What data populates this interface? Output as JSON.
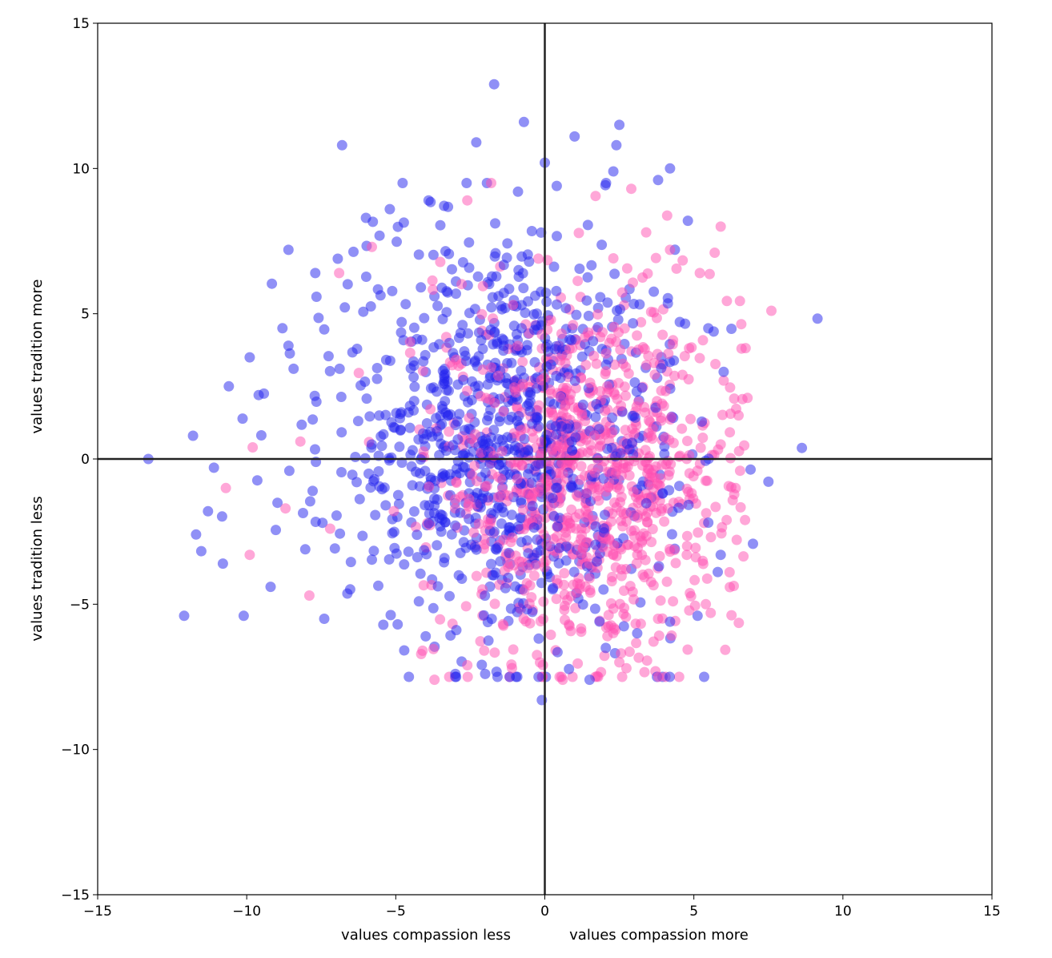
{
  "chart_data": {
    "type": "scatter",
    "title": "",
    "xlim": [
      -15,
      15
    ],
    "ylim": [
      -15,
      15
    ],
    "x_ticks": [
      -15,
      -10,
      -5,
      0,
      5,
      10,
      15
    ],
    "y_ticks": [
      -15,
      -10,
      -5,
      0,
      5,
      10,
      15
    ],
    "x_tick_labels": [
      "−15",
      "−10",
      "−5",
      "0",
      "5",
      "10",
      "15"
    ],
    "y_tick_labels": [
      "−15",
      "−10",
      "−5",
      "0",
      "5",
      "10",
      "15"
    ],
    "x_labels": {
      "left": "values compassion less",
      "right": "values compassion more"
    },
    "y_labels": {
      "bottom": "values tradition less",
      "top": "values tradition more"
    },
    "grid": false,
    "legend": "none",
    "reference_lines": [
      {
        "orientation": "vertical",
        "value": 0
      },
      {
        "orientation": "horizontal",
        "value": 0
      }
    ],
    "point_alpha": 0.5,
    "series": [
      {
        "color": "#ff4fb2",
        "center": [
          1.3,
          -0.6
        ],
        "spread": [
          2.4,
          3.0
        ],
        "points": [
          [
            7.6,
            5.1
          ],
          [
            6.6,
            3.8
          ],
          [
            6.8,
            2.1
          ],
          [
            5.9,
            8.0
          ],
          [
            5.7,
            7.1
          ],
          [
            6.4,
            -1.0
          ],
          [
            6.2,
            -3.9
          ],
          [
            -3.7,
            -7.6
          ],
          [
            0.6,
            -7.6
          ],
          [
            2.5,
            -7.0
          ],
          [
            -10.7,
            -1.0
          ],
          [
            -9.9,
            -3.3
          ],
          [
            -7.9,
            -4.7
          ],
          [
            -8.7,
            -1.7
          ],
          [
            -2.6,
            8.9
          ],
          [
            2.9,
            9.3
          ],
          [
            -1.8,
            9.5
          ],
          [
            -5.8,
            7.3
          ],
          [
            -6.9,
            6.4
          ],
          [
            -8.2,
            0.6
          ],
          [
            -9.8,
            0.4
          ],
          [
            -7.2,
            -2.4
          ],
          [
            4.2,
            7.2
          ],
          [
            5.2,
            6.4
          ],
          [
            3.4,
            7.8
          ],
          [
            6.0,
            2.7
          ],
          [
            6.5,
            1.5
          ],
          [
            5.9,
            0.5
          ],
          [
            6.1,
            -2.1
          ],
          [
            5.4,
            -5.0
          ],
          [
            -1.1,
            -7.2
          ],
          [
            -2.6,
            -7.1
          ],
          [
            -4.1,
            -6.6
          ],
          [
            2.1,
            -6.1
          ],
          [
            3.8,
            -5.5
          ],
          [
            4.3,
            -4.9
          ]
        ]
      },
      {
        "color": "#2222ee",
        "center": [
          -1.4,
          0.6
        ],
        "spread": [
          3.0,
          3.4
        ],
        "points": [
          [
            -1.7,
            12.9
          ],
          [
            -0.7,
            11.6
          ],
          [
            1.0,
            11.1
          ],
          [
            2.5,
            11.5
          ],
          [
            2.4,
            10.8
          ],
          [
            -2.3,
            10.9
          ],
          [
            -6.8,
            10.8
          ],
          [
            0.0,
            10.2
          ],
          [
            4.2,
            10.0
          ],
          [
            2.3,
            9.9
          ],
          [
            3.8,
            9.6
          ],
          [
            -8.6,
            7.2
          ],
          [
            -7.7,
            6.4
          ],
          [
            -13.3,
            0.0
          ],
          [
            -11.8,
            0.8
          ],
          [
            -11.1,
            -0.3
          ],
          [
            -12.1,
            -5.4
          ],
          [
            -11.7,
            -2.6
          ],
          [
            -11.3,
            -1.8
          ],
          [
            -10.1,
            -5.4
          ],
          [
            -10.8,
            -3.6
          ],
          [
            -9.9,
            3.5
          ],
          [
            -9.6,
            2.2
          ],
          [
            -8.8,
            4.5
          ],
          [
            -8.6,
            3.9
          ],
          [
            -10.6,
            2.5
          ],
          [
            -9.2,
            -4.4
          ],
          [
            -7.4,
            -5.5
          ],
          [
            -0.1,
            -8.3
          ],
          [
            -2.0,
            -7.4
          ],
          [
            1.5,
            -7.6
          ],
          [
            -3.0,
            -7.4
          ],
          [
            3.1,
            -6.0
          ],
          [
            4.2,
            -5.6
          ],
          [
            5.9,
            -3.3
          ],
          [
            6.0,
            3.0
          ],
          [
            4.8,
            8.2
          ],
          [
            -0.9,
            9.2
          ],
          [
            0.4,
            9.4
          ],
          [
            -6.0,
            8.3
          ],
          [
            -5.2,
            8.6
          ],
          [
            -3.9,
            8.9
          ]
        ]
      }
    ]
  }
}
